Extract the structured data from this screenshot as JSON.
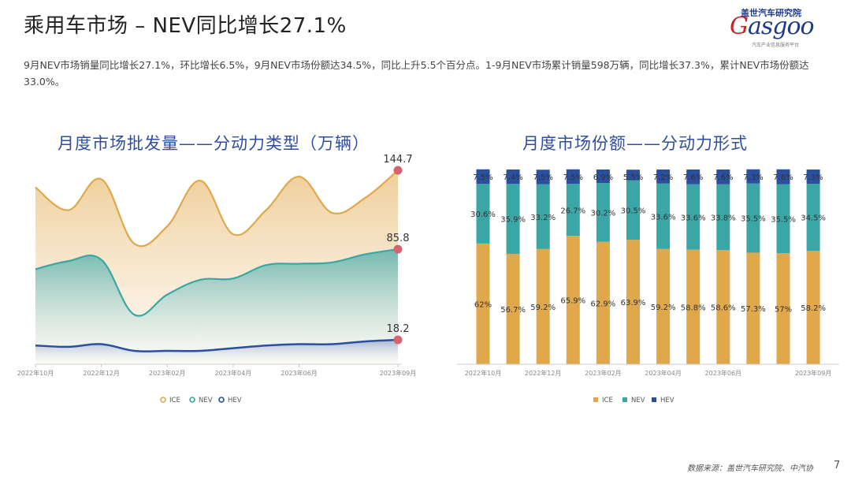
{
  "header": {
    "title": "乘用车市场 – NEV同比增长27.1%",
    "summary": "9月NEV市场销量同比增长27.1%，环比增长6.5%，9月NEV市场份额达34.5%，同比上升5.5个百分点。1-9月NEV市场累计销量598万辆，同比增长37.3%，累计NEV市场份额达33.0%。"
  },
  "logo": {
    "top": "盖世汽车研究院",
    "main_g": "G",
    "main_rest": "asgoo",
    "sub": "汽车产业信息服务平台"
  },
  "footer": {
    "source": "数据来源：盖世汽车研究院、中汽协",
    "page": "7"
  },
  "colors": {
    "ice": "#e0a84a",
    "nev": "#3aa6a6",
    "hev": "#2a4f9e",
    "dot": "#d6646e",
    "title": "#2f4e9c"
  },
  "chart_data": [
    {
      "type": "area",
      "title": "月度市场批发量——分动力类型（万辆）",
      "x_ticks": [
        "2022年10月",
        "2022年12月",
        "2023年02月",
        "2023年04月",
        "2023年06月",
        "2023年09月"
      ],
      "series": [
        {
          "name": "ICE",
          "values": [
            132,
            115,
            138,
            90,
            103,
            137,
            97,
            115,
            140,
            113,
            124,
            144.7
          ]
        },
        {
          "name": "NEV",
          "values": [
            71,
            77,
            78,
            37,
            52,
            63,
            64,
            74,
            75,
            76,
            82,
            85.8
          ]
        },
        {
          "name": "HEV",
          "values": [
            14,
            13,
            15,
            10,
            10,
            10,
            12,
            14,
            15,
            15,
            17,
            18.2
          ]
        }
      ],
      "end_labels": [
        "144.7",
        "85.8",
        "18.2"
      ],
      "ylim": [
        0,
        160
      ],
      "legend": "bottom"
    },
    {
      "type": "bar",
      "stacked": true,
      "title": "月度市场份额——分动力形式",
      "x_ticks": [
        "2022年10月",
        "2022年12月",
        "2023年02月",
        "2023年04月",
        "2023年06月",
        "2023年09月"
      ],
      "series": [
        {
          "name": "ICE",
          "values": [
            62,
            56.7,
            59.2,
            65.9,
            62.9,
            63.9,
            59.2,
            58.8,
            58.6,
            57.3,
            57,
            58.2
          ]
        },
        {
          "name": "NEV",
          "values": [
            30.6,
            35.9,
            33.2,
            26.7,
            30.2,
            30.5,
            33.6,
            33.6,
            33.8,
            35.5,
            35.5,
            34.5
          ]
        },
        {
          "name": "HEV",
          "values": [
            7.5,
            7.4,
            7.5,
            7.5,
            6.9,
            5.5,
            7.2,
            7.6,
            7.6,
            7.3,
            7.6,
            7.3
          ]
        }
      ],
      "value_labels": {
        "ICE": [
          "62%",
          "56.7%",
          "59.2%",
          "65.9%",
          "62.9%",
          "63.9%",
          "59.2%",
          "58.8%",
          "58.6%",
          "57.3%",
          "57%",
          "58.2%"
        ],
        "NEV": [
          "30.6%",
          "35.9%",
          "33.2%",
          "26.7%",
          "30.2%",
          "30.5%",
          "33.6%",
          "33.6%",
          "33.8%",
          "35.5%",
          "35.5%",
          "34.5%"
        ],
        "HEV": [
          "7.5%",
          "7.4%",
          "7.5%",
          "7.5%",
          "6.9%",
          "5.5%",
          "7.2%",
          "7.6%",
          "7.6%",
          "7.3%",
          "7.6%",
          "7.3%"
        ]
      },
      "legend": "bottom"
    }
  ]
}
